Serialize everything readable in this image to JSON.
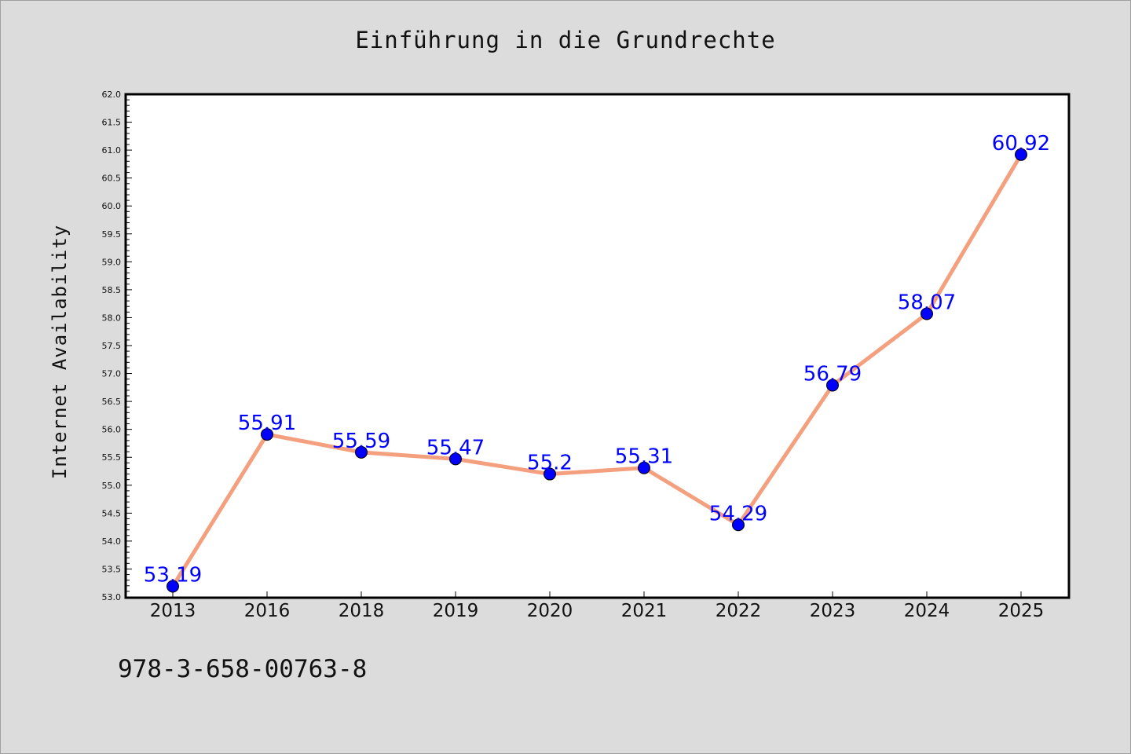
{
  "chart_data": {
    "type": "line",
    "title": "Einführung in die Grundrechte",
    "xlabel": "",
    "ylabel": "Internet Availability",
    "categories": [
      "2013",
      "2016",
      "2018",
      "2019",
      "2020",
      "2021",
      "2022",
      "2023",
      "2024",
      "2025"
    ],
    "series": [
      {
        "values": [
          53.19,
          55.91,
          55.59,
          55.47,
          55.2,
          55.31,
          54.29,
          56.79,
          58.07,
          60.92
        ],
        "labels": [
          "53.19",
          "55.91",
          "55.59",
          "55.47",
          "55.2",
          "55.31",
          "54.29",
          "56.79",
          "58.07",
          "60.92"
        ],
        "line_color": "#f4a07f",
        "marker_color": "#0000ff"
      }
    ],
    "ylim": [
      53.0,
      62.0
    ],
    "yticks": [
      "53.0",
      "53.5",
      "54.0",
      "54.5",
      "55.0",
      "55.5",
      "56.0",
      "56.5",
      "57.0",
      "57.5",
      "58.0",
      "58.5",
      "59.0",
      "59.5",
      "60.0",
      "60.5",
      "61.0",
      "61.5",
      "62.0"
    ],
    "grid": false,
    "legend": "none"
  },
  "footnote": "978-3-658-00763-8",
  "colors": {
    "background": "#dcdcdc",
    "plot_background": "#ffffff",
    "axis": "#000000",
    "line": "#f4a07f",
    "marker": "#0000ff",
    "data_label": "#0000ff"
  }
}
